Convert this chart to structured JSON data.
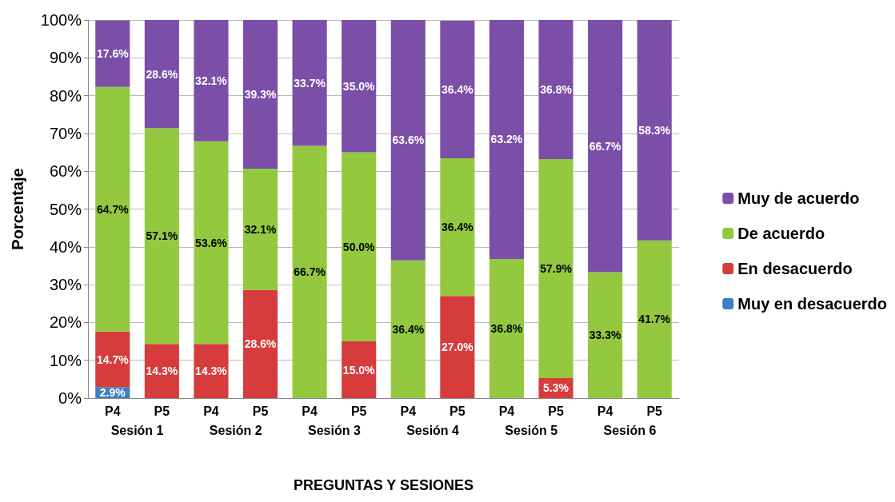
{
  "chart_data": {
    "type": "bar",
    "stacked": true,
    "xlabel": "PREGUNTAS Y SESIONES",
    "ylabel": "Porcentaje",
    "categories": [
      "P4",
      "P5",
      "P4",
      "P5",
      "P4",
      "P5",
      "P4",
      "P5",
      "P4",
      "P5",
      "P4",
      "P5"
    ],
    "annotations": [
      "Sesión 1",
      "Sesión 2",
      "Sesión 3",
      "Sesión 4",
      "Sesión 5",
      "Sesión 6"
    ],
    "series": [
      {
        "name": "Muy en desacuerdo",
        "color": "#3b7fc4",
        "values": [
          2.9,
          null,
          null,
          null,
          null,
          null,
          null,
          null,
          null,
          null,
          null,
          null
        ],
        "value_labels": [
          "2.9%",
          null,
          null,
          null,
          null,
          null,
          null,
          null,
          null,
          null,
          null,
          null
        ]
      },
      {
        "name": "En desacuerdo",
        "color": "#d63c3c",
        "values": [
          14.7,
          14.3,
          14.3,
          28.6,
          null,
          15.0,
          null,
          27.0,
          null,
          5.3,
          null,
          null
        ],
        "value_labels": [
          "14.7%",
          "14.3%",
          "14.3%",
          "28.6%",
          null,
          "15.0%",
          null,
          "27.0%",
          null,
          "5.3%",
          null,
          null
        ]
      },
      {
        "name": "De acuerdo",
        "color": "#93c83f",
        "values": [
          64.7,
          57.1,
          53.6,
          32.1,
          66.7,
          50.0,
          36.4,
          36.4,
          36.8,
          57.9,
          33.3,
          41.7
        ],
        "value_labels": [
          "64.7%",
          "57.1%",
          "53.6%",
          "32.1%",
          "66.7%",
          "50.0%",
          "36.4%",
          "36.4%",
          "36.8%",
          "57.9%",
          "33.3%",
          "41.7%"
        ]
      },
      {
        "name": "Muy de acuerdo",
        "color": "#7b4fa8",
        "values": [
          17.6,
          28.6,
          32.1,
          39.3,
          33.7,
          35.0,
          63.6,
          36.4,
          63.2,
          36.8,
          66.7,
          58.3
        ],
        "value_labels": [
          "17.6%",
          "28.6%",
          "32.1%",
          "39.3%",
          "33.7%",
          "35.0%",
          "63.6%",
          "36.4%",
          "63.2%",
          "36.8%",
          "66.7%",
          "58.3%"
        ]
      }
    ],
    "ylim": [
      0,
      100
    ],
    "yticks": [
      {
        "value": 0,
        "label": "0%"
      },
      {
        "value": 10,
        "label": "10%"
      },
      {
        "value": 20,
        "label": "20%"
      },
      {
        "value": 30,
        "label": "30%"
      },
      {
        "value": 40,
        "label": "40%"
      },
      {
        "value": 50,
        "label": "50%"
      },
      {
        "value": 60,
        "label": "60%"
      },
      {
        "value": 70,
        "label": "70%"
      },
      {
        "value": 80,
        "label": "80%"
      },
      {
        "value": 90,
        "label": "90%"
      },
      {
        "value": 100,
        "label": "100%"
      }
    ],
    "grid": true,
    "legend": "right"
  }
}
